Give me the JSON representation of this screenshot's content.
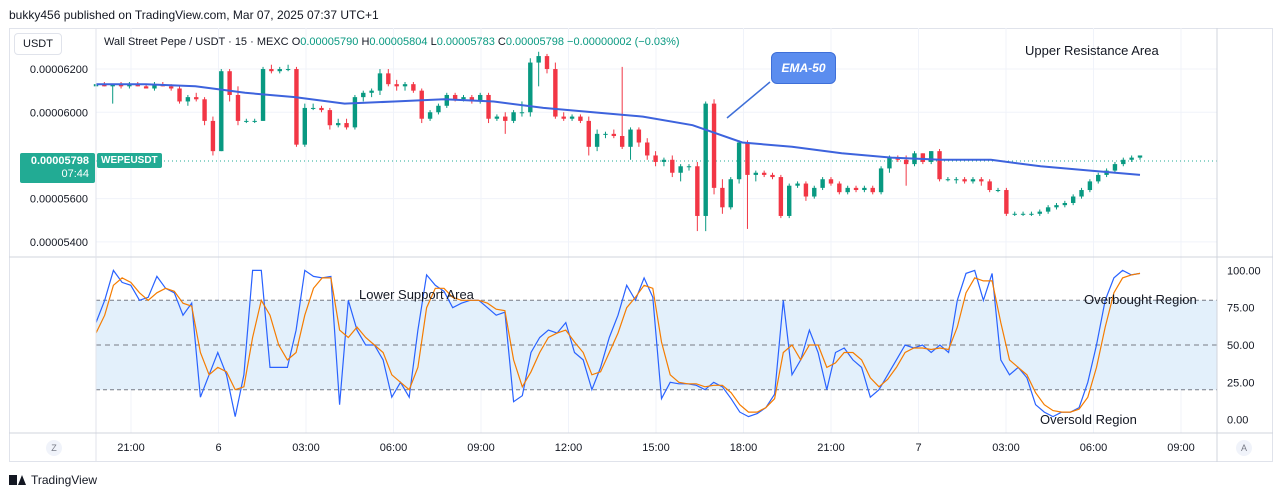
{
  "publisher_line": "bukky456 published on TradingView.com, Mar 07, 2025 07:37 UTC+1",
  "currency_button": "USDT",
  "legend": {
    "symbol": "Wall Street Pepe / USDT · 15 · MEXC",
    "o_label": "O",
    "o_value": "0.00005790",
    "h_label": "H",
    "h_value": "0.00005804",
    "l_label": "L",
    "l_value": "0.00005783",
    "c_label": "C",
    "c_value": "0.00005798",
    "change": "−0.00000002 (−0.03%)"
  },
  "price_tag": {
    "value": "0.00005798",
    "countdown": "07:44",
    "ticker": "WEPEUSDT"
  },
  "annotations": {
    "ema_callout": "EMA-50",
    "upper_resistance": "Upper Resistance Area",
    "lower_support": "Lower Support Area",
    "overbought": "Overbought Region",
    "oversold": "Oversold Region"
  },
  "buttons": {
    "z": "Z",
    "a": "A"
  },
  "footer_brand": "TradingView",
  "colors": {
    "up": "#089981",
    "down": "#f23645",
    "ema": "#3d63dd",
    "k_line": "#2962ff",
    "d_line": "#f57c00",
    "band": "#e3f0fb"
  },
  "chart_data": [
    {
      "type": "candlestick",
      "title": "Wall Street Pepe / USDT · 15 · MEXC",
      "y_ticks": [
        "0.00006200",
        "0.00006000",
        "0.00005600",
        "0.00005400"
      ],
      "y_tick_values": [
        6.2e-05,
        6e-05,
        5.6e-05,
        5.4e-05
      ],
      "ylim": [
        5.33e-05,
        6.39e-05
      ],
      "x_ticks": [
        "21:00",
        "6",
        "03:00",
        "06:00",
        "09:00",
        "12:00",
        "15:00",
        "18:00",
        "21:00",
        "7",
        "03:00",
        "06:00",
        "09:00"
      ],
      "last_price": 5.798e-05,
      "ema_label": "EMA-50",
      "ema": [
        6.13e-05,
        6.13e-05,
        6.12e-05,
        6.09e-05,
        6.07e-05,
        6.04e-05,
        6.05e-05,
        6.06e-05,
        6.05e-05,
        6.02e-05,
        6e-05,
        5.98e-05,
        5.94e-05,
        5.86e-05,
        5.84e-05,
        5.81e-05,
        5.79e-05,
        5.78e-05,
        5.78e-05,
        5.75e-05,
        5.73e-05,
        5.71e-05
      ],
      "candles": [
        [
          6.12e-05,
          6.14e-05,
          6.11e-05,
          6.13e-05
        ],
        [
          6.13e-05,
          6.14e-05,
          6.12e-05,
          6.12e-05
        ],
        [
          6.12e-05,
          6.13e-05,
          6.04e-05,
          6.13e-05
        ],
        [
          6.13e-05,
          6.14e-05,
          6.11e-05,
          6.12e-05
        ],
        [
          6.12e-05,
          6.14e-05,
          6.11e-05,
          6.13e-05
        ],
        [
          6.13e-05,
          6.14e-05,
          6.12e-05,
          6.12e-05
        ],
        [
          6.12e-05,
          6.13e-05,
          6.11e-05,
          6.11e-05
        ],
        [
          6.11e-05,
          6.14e-05,
          6.1e-05,
          6.13e-05
        ],
        [
          6.13e-05,
          6.14e-05,
          6.12e-05,
          6.12e-05
        ],
        [
          6.12e-05,
          6.13e-05,
          6.1e-05,
          6.11e-05
        ],
        [
          6.11e-05,
          6.12e-05,
          6.04e-05,
          6.05e-05
        ],
        [
          6.05e-05,
          6.08e-05,
          6.03e-05,
          6.07e-05
        ],
        [
          6.07e-05,
          6.09e-05,
          6.05e-05,
          6.06e-05
        ],
        [
          6.06e-05,
          6.07e-05,
          5.94e-05,
          5.96e-05
        ],
        [
          5.96e-05,
          5.98e-05,
          5.8e-05,
          5.82e-05
        ],
        [
          5.82e-05,
          6.2e-05,
          5.82e-05,
          6.19e-05
        ],
        [
          6.19e-05,
          6.2e-05,
          6.05e-05,
          6.08e-05
        ],
        [
          6.08e-05,
          6.12e-05,
          5.94e-05,
          5.96e-05
        ],
        [
          5.96e-05,
          5.97e-05,
          5.95e-05,
          5.96e-05
        ],
        [
          5.96e-05,
          5.97e-05,
          5.95e-05,
          5.96e-05
        ],
        [
          5.96e-05,
          6.21e-05,
          5.96e-05,
          6.2e-05
        ],
        [
          6.2e-05,
          6.22e-05,
          6.18e-05,
          6.19e-05
        ],
        [
          6.19e-05,
          6.21e-05,
          6.18e-05,
          6.2e-05
        ],
        [
          6.2e-05,
          6.22e-05,
          6.19e-05,
          6.2e-05
        ],
        [
          6.2e-05,
          6.21e-05,
          5.84e-05,
          5.85e-05
        ],
        [
          5.85e-05,
          6.04e-05,
          5.84e-05,
          6.02e-05
        ],
        [
          6.02e-05,
          6.04e-05,
          6.01e-05,
          6.02e-05
        ],
        [
          6.02e-05,
          6.03e-05,
          6e-05,
          6.01e-05
        ],
        [
          6.01e-05,
          6.02e-05,
          5.92e-05,
          5.94e-05
        ],
        [
          5.94e-05,
          5.97e-05,
          5.93e-05,
          5.95e-05
        ],
        [
          5.95e-05,
          5.97e-05,
          5.92e-05,
          5.93e-05
        ],
        [
          5.93e-05,
          6.08e-05,
          5.92e-05,
          6.07e-05
        ],
        [
          6.07e-05,
          6.1e-05,
          6.05e-05,
          6.09e-05
        ],
        [
          6.09e-05,
          6.11e-05,
          6.07e-05,
          6.1e-05
        ],
        [
          6.1e-05,
          6.2e-05,
          6.08e-05,
          6.18e-05
        ],
        [
          6.18e-05,
          6.2e-05,
          6.12e-05,
          6.13e-05
        ],
        [
          6.13e-05,
          6.15e-05,
          6.1e-05,
          6.12e-05
        ],
        [
          6.12e-05,
          6.14e-05,
          6.1e-05,
          6.13e-05
        ],
        [
          6.13e-05,
          6.14e-05,
          6.09e-05,
          6.1e-05
        ],
        [
          6.1e-05,
          6.11e-05,
          5.95e-05,
          5.97e-05
        ],
        [
          5.97e-05,
          6.01e-05,
          5.96e-05,
          6e-05
        ],
        [
          6e-05,
          6.04e-05,
          5.99e-05,
          6.03e-05
        ],
        [
          6.03e-05,
          6.09e-05,
          6.02e-05,
          6.08e-05
        ],
        [
          6.08e-05,
          6.09e-05,
          6.05e-05,
          6.06e-05
        ],
        [
          6.06e-05,
          6.08e-05,
          6.05e-05,
          6.07e-05
        ],
        [
          6.07e-05,
          6.08e-05,
          6.04e-05,
          6.05e-05
        ],
        [
          6.05e-05,
          6.09e-05,
          6.04e-05,
          6.08e-05
        ],
        [
          6.08e-05,
          6.09e-05,
          5.95e-05,
          5.97e-05
        ],
        [
          5.97e-05,
          5.99e-05,
          5.96e-05,
          5.98e-05
        ],
        [
          5.98e-05,
          6e-05,
          5.9e-05,
          5.96e-05
        ],
        [
          5.96e-05,
          6.01e-05,
          5.95e-05,
          6e-05
        ],
        [
          6e-05,
          6.05e-05,
          5.98e-05,
          6e-05
        ],
        [
          6e-05,
          6.25e-05,
          5.98e-05,
          6.23e-05
        ],
        [
          6.23e-05,
          6.28e-05,
          6.12e-05,
          6.26e-05
        ],
        [
          6.26e-05,
          6.27e-05,
          6.18e-05,
          6.2e-05
        ],
        [
          6.2e-05,
          6.23e-05,
          5.97e-05,
          5.98e-05
        ],
        [
          5.98e-05,
          6e-05,
          5.96e-05,
          5.97e-05
        ],
        [
          5.97e-05,
          5.99e-05,
          5.96e-05,
          5.98e-05
        ],
        [
          5.98e-05,
          5.99e-05,
          5.95e-05,
          5.96e-05
        ],
        [
          5.96e-05,
          5.98e-05,
          5.8e-05,
          5.84e-05
        ],
        [
          5.84e-05,
          5.92e-05,
          5.82e-05,
          5.9e-05
        ],
        [
          5.9e-05,
          5.91e-05,
          5.88e-05,
          5.9e-05
        ],
        [
          5.9e-05,
          5.92e-05,
          5.88e-05,
          5.89e-05
        ],
        [
          5.89e-05,
          6.21e-05,
          5.83e-05,
          5.84e-05
        ],
        [
          5.84e-05,
          5.93e-05,
          5.78e-05,
          5.92e-05
        ],
        [
          5.92e-05,
          5.93e-05,
          5.84e-05,
          5.86e-05
        ],
        [
          5.86e-05,
          5.88e-05,
          5.78e-05,
          5.8e-05
        ],
        [
          5.8e-05,
          5.82e-05,
          5.75e-05,
          5.77e-05
        ],
        [
          5.77e-05,
          5.79e-05,
          5.75e-05,
          5.78e-05
        ],
        [
          5.78e-05,
          5.8e-05,
          5.7e-05,
          5.72e-05
        ],
        [
          5.72e-05,
          5.76e-05,
          5.68e-05,
          5.75e-05
        ],
        [
          5.75e-05,
          5.76e-05,
          5.73e-05,
          5.75e-05
        ],
        [
          5.75e-05,
          5.77e-05,
          5.45e-05,
          5.52e-05
        ],
        [
          5.52e-05,
          6.05e-05,
          5.45e-05,
          6.04e-05
        ],
        [
          6.04e-05,
          6.06e-05,
          5.62e-05,
          5.65e-05
        ],
        [
          5.65e-05,
          5.69e-05,
          5.53e-05,
          5.56e-05
        ],
        [
          5.56e-05,
          5.7e-05,
          5.55e-05,
          5.69e-05
        ],
        [
          5.69e-05,
          5.87e-05,
          5.67e-05,
          5.86e-05
        ],
        [
          5.86e-05,
          5.87e-05,
          5.46e-05,
          5.71e-05
        ],
        [
          5.71e-05,
          5.73e-05,
          5.68e-05,
          5.72e-05
        ],
        [
          5.72e-05,
          5.73e-05,
          5.7e-05,
          5.71e-05
        ],
        [
          5.71e-05,
          5.72e-05,
          5.69e-05,
          5.7e-05
        ],
        [
          5.7e-05,
          5.71e-05,
          5.51e-05,
          5.52e-05
        ],
        [
          5.52e-05,
          5.67e-05,
          5.51e-05,
          5.66e-05
        ],
        [
          5.66e-05,
          5.68e-05,
          5.65e-05,
          5.67e-05
        ],
        [
          5.67e-05,
          5.68e-05,
          5.59e-05,
          5.61e-05
        ],
        [
          5.61e-05,
          5.66e-05,
          5.6e-05,
          5.65e-05
        ],
        [
          5.65e-05,
          5.7e-05,
          5.64e-05,
          5.69e-05
        ],
        [
          5.69e-05,
          5.7e-05,
          5.66e-05,
          5.67e-05
        ],
        [
          5.67e-05,
          5.68e-05,
          5.62e-05,
          5.63e-05
        ],
        [
          5.63e-05,
          5.66e-05,
          5.62e-05,
          5.65e-05
        ],
        [
          5.65e-05,
          5.66e-05,
          5.63e-05,
          5.64e-05
        ],
        [
          5.64e-05,
          5.66e-05,
          5.63e-05,
          5.65e-05
        ],
        [
          5.65e-05,
          5.66e-05,
          5.62e-05,
          5.63e-05
        ],
        [
          5.63e-05,
          5.75e-05,
          5.62e-05,
          5.74e-05
        ],
        [
          5.74e-05,
          5.8e-05,
          5.72e-05,
          5.79e-05
        ],
        [
          5.79e-05,
          5.8e-05,
          5.77e-05,
          5.78e-05
        ],
        [
          5.78e-05,
          5.8e-05,
          5.66e-05,
          5.76e-05
        ],
        [
          5.76e-05,
          5.82e-05,
          5.75e-05,
          5.81e-05
        ],
        [
          5.81e-05,
          5.81e-05,
          5.76e-05,
          5.77e-05
        ],
        [
          5.77e-05,
          5.82e-05,
          5.76e-05,
          5.82e-05
        ],
        [
          5.82e-05,
          5.83e-05,
          5.68e-05,
          5.69e-05
        ],
        [
          5.69e-05,
          5.7e-05,
          5.68e-05,
          5.69e-05
        ],
        [
          5.69e-05,
          5.7e-05,
          5.67e-05,
          5.69e-05
        ],
        [
          5.69e-05,
          5.7e-05,
          5.67e-05,
          5.68e-05
        ],
        [
          5.68e-05,
          5.7e-05,
          5.67e-05,
          5.69e-05
        ],
        [
          5.69e-05,
          5.7e-05,
          5.66e-05,
          5.68e-05
        ],
        [
          5.68e-05,
          5.69e-05,
          5.63e-05,
          5.64e-05
        ],
        [
          5.64e-05,
          5.65e-05,
          5.63e-05,
          5.64e-05
        ],
        [
          5.64e-05,
          5.65e-05,
          5.52e-05,
          5.53e-05
        ],
        [
          5.53e-05,
          5.54e-05,
          5.52e-05,
          5.53e-05
        ],
        [
          5.53e-05,
          5.54e-05,
          5.52e-05,
          5.53e-05
        ],
        [
          5.53e-05,
          5.54e-05,
          5.52e-05,
          5.53e-05
        ],
        [
          5.53e-05,
          5.55e-05,
          5.52e-05,
          5.54e-05
        ],
        [
          5.54e-05,
          5.57e-05,
          5.53e-05,
          5.56e-05
        ],
        [
          5.56e-05,
          5.58e-05,
          5.55e-05,
          5.57e-05
        ],
        [
          5.57e-05,
          5.59e-05,
          5.56e-05,
          5.58e-05
        ],
        [
          5.58e-05,
          5.62e-05,
          5.57e-05,
          5.61e-05
        ],
        [
          5.61e-05,
          5.65e-05,
          5.6e-05,
          5.64e-05
        ],
        [
          5.64e-05,
          5.69e-05,
          5.63e-05,
          5.68e-05
        ],
        [
          5.68e-05,
          5.72e-05,
          5.67e-05,
          5.71e-05
        ],
        [
          5.71e-05,
          5.74e-05,
          5.7e-05,
          5.73e-05
        ],
        [
          5.73e-05,
          5.77e-05,
          5.72e-05,
          5.76e-05
        ],
        [
          5.76e-05,
          5.79e-05,
          5.75e-05,
          5.78e-05
        ],
        [
          5.78e-05,
          5.8e-05,
          5.77e-05,
          5.79e-05
        ],
        [
          5.79e-05,
          5.8e-05,
          5.78e-05,
          5.8e-05
        ]
      ]
    },
    {
      "type": "line",
      "title": "",
      "y_ticks": [
        "100.00",
        "75.00",
        "50.00",
        "25.00",
        "0.00"
      ],
      "y_tick_values": [
        100,
        75,
        50,
        25,
        0
      ],
      "ylim": [
        -9,
        109
      ],
      "bands": [
        20,
        50,
        80
      ],
      "series": [
        {
          "values": [
            65,
            80,
            100,
            92,
            90,
            80,
            82,
            96,
            88,
            85,
            70,
            78,
            15,
            30,
            45,
            30,
            2,
            30,
            100,
            100,
            35,
            35,
            35,
            60,
            100,
            96,
            95,
            96,
            10,
            80,
            60,
            50,
            50,
            40,
            15,
            25,
            15,
            60,
            97,
            90,
            86,
            75,
            78,
            80,
            80,
            75,
            70,
            72,
            12,
            16,
            45,
            55,
            60,
            58,
            65,
            45,
            40,
            20,
            35,
            55,
            70,
            90,
            80,
            95,
            82,
            14,
            25,
            24,
            24,
            23,
            20,
            25,
            22,
            14,
            5,
            2,
            4,
            8,
            17,
            80,
            30,
            40,
            60,
            45,
            20,
            45,
            48,
            40,
            35,
            15,
            20,
            30,
            40,
            50,
            48,
            50,
            45,
            50,
            45,
            80,
            98,
            100,
            80,
            98,
            40,
            30,
            35,
            28,
            10,
            5,
            2,
            5,
            5,
            8,
            25,
            50,
            80,
            95,
            100,
            97,
            98
          ]
        },
        {
          "values": [
            58,
            70,
            90,
            95,
            92,
            85,
            80,
            85,
            88,
            86,
            78,
            76,
            45,
            30,
            35,
            32,
            20,
            22,
            55,
            80,
            70,
            50,
            40,
            45,
            70,
            88,
            95,
            95,
            60,
            55,
            62,
            55,
            50,
            45,
            30,
            25,
            20,
            35,
            75,
            88,
            88,
            82,
            80,
            80,
            80,
            78,
            74,
            73,
            40,
            22,
            32,
            45,
            55,
            58,
            60,
            52,
            45,
            30,
            32,
            45,
            58,
            75,
            82,
            90,
            88,
            52,
            30,
            25,
            24,
            24,
            22,
            23,
            23,
            18,
            10,
            5,
            5,
            8,
            14,
            45,
            50,
            40,
            50,
            50,
            35,
            38,
            45,
            45,
            40,
            28,
            22,
            27,
            35,
            45,
            48,
            48,
            47,
            48,
            47,
            62,
            85,
            95,
            93,
            93,
            65,
            40,
            35,
            30,
            18,
            10,
            6,
            5,
            5,
            7,
            15,
            35,
            62,
            85,
            95,
            97,
            98
          ]
        }
      ]
    }
  ]
}
